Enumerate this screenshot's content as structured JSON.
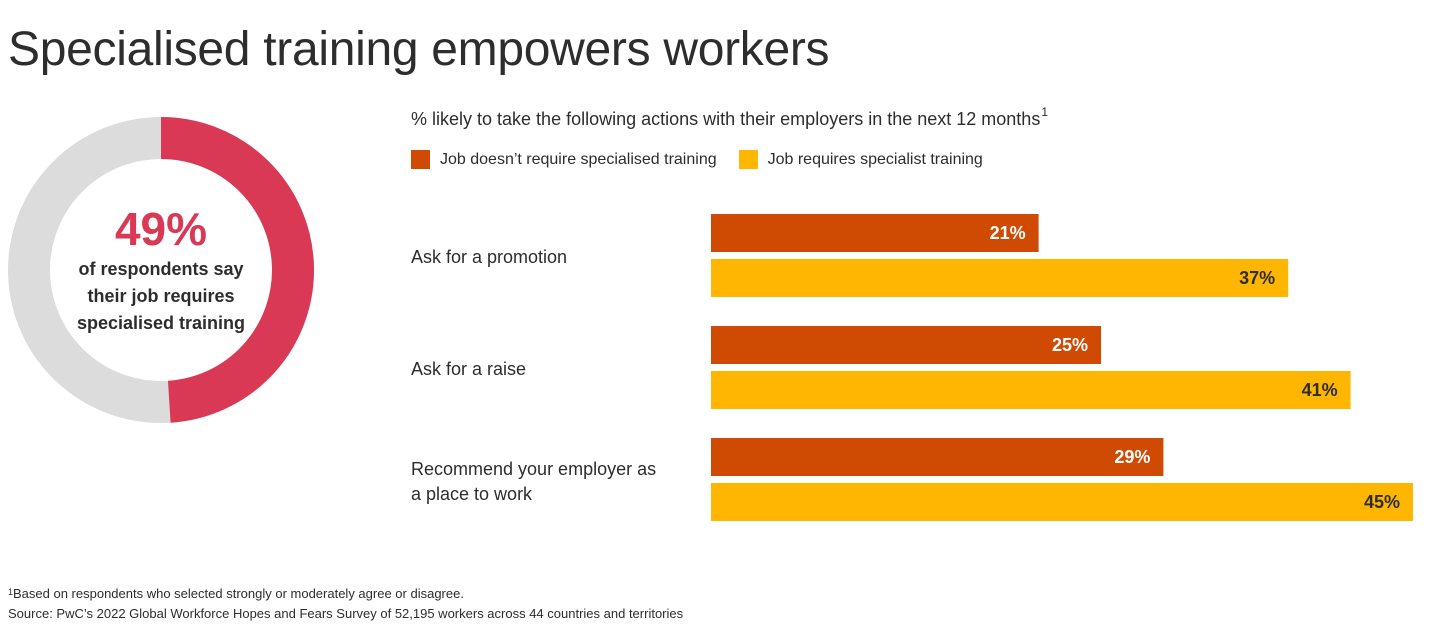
{
  "title": "Specialised training empowers workers",
  "donut": {
    "percent_label": "49%",
    "value": 49,
    "lines": [
      "of respondents say",
      "their job requires",
      "specialised training"
    ],
    "colors": {
      "filled": "#d93954",
      "remaining": "#dcdcdc"
    }
  },
  "subtitle": "% likely to take the following actions with their employers in the next 12 months",
  "subtitle_sup": "1",
  "footnote": {
    "marker": "1",
    "line1": "Based on respondents who selected strongly or moderately agree or disagree.",
    "line2": "Source: PwC’s 2022 Global Workforce Hopes and Fears Survey of 52,195 workers across 44 countries and territories"
  },
  "chart_data": {
    "type": "bar",
    "orientation": "horizontal",
    "categories": [
      [
        "Ask for a promotion"
      ],
      [
        "Ask for a raise"
      ],
      [
        "Recommend your employer as",
        "a place to work"
      ]
    ],
    "series": [
      {
        "name": "Job doesn’t require specialised training",
        "color": "#cf4a02",
        "values": [
          21,
          25,
          29
        ],
        "labels": [
          "21%",
          "25%",
          "29%"
        ],
        "label_color": "#ffffff"
      },
      {
        "name": "Job requires specialist training",
        "color": "#ffb600",
        "values": [
          37,
          41,
          45
        ],
        "labels": [
          "37%",
          "41%",
          "45%"
        ],
        "label_color": "#2d2d2d"
      }
    ],
    "legend_position": "top-left",
    "grid": false
  }
}
